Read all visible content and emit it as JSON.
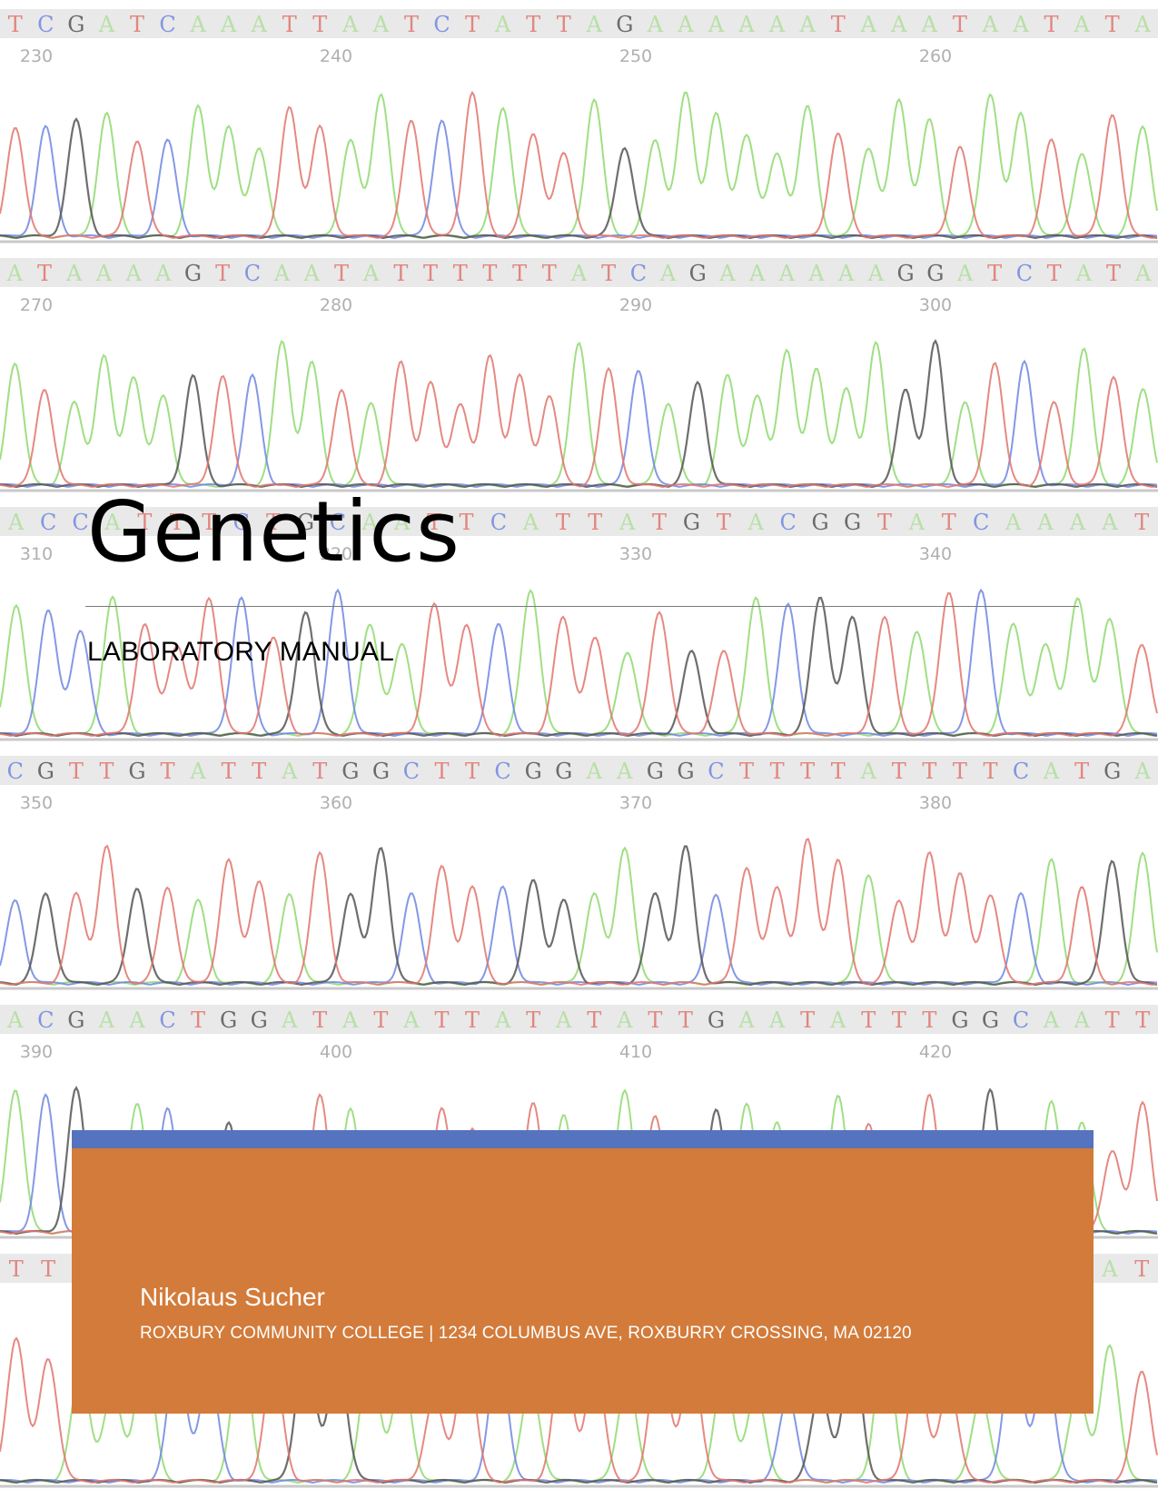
{
  "cover": {
    "title": "Genetics",
    "subtitle": "LABORATORY MANUAL",
    "author": "Nikolaus Sucher",
    "address": "ROXBURY COMMUNITY COLLEGE | 1234 COLUMBUS AVE, ROXBURRY CROSSING, MA 02120"
  },
  "colors": {
    "accent_bar": "#5573bf",
    "footer_box": "#d37b3a",
    "trace_A": "#8ed96f",
    "trace_C": "#6f86e0",
    "trace_G": "#555555",
    "trace_T": "#e0746c"
  },
  "chromatogram": {
    "rows": [
      {
        "sequence": "TCGATCAAATTAATCTATTAGAAAAAATAAATAATATA",
        "ticks": [
          "230",
          "240",
          "250",
          "260"
        ]
      },
      {
        "sequence": "ATAAAAGTCAATATTTTTTATCAGAAAAAAGGATCTATA",
        "ticks": [
          "270",
          "280",
          "290",
          "300"
        ]
      },
      {
        "sequence": "ACCATTTCTGCAATTCATTATGTACGGTATCAAAAT",
        "ticks": [
          "310",
          "320",
          "330",
          "340"
        ]
      },
      {
        "sequence": "CGTTGTATTATGGCTTCGGAAGGCTTTTATTTTCATGA",
        "ticks": [
          "350",
          "360",
          "370",
          "380"
        ]
      },
      {
        "sequence": "ACGAACTGGATATATTATATATTGAATATTTGGCAATT",
        "ticks": [
          "390",
          "400",
          "410",
          "420"
        ]
      },
      {
        "sequence": "TTAAACCATGGAATTCATTATTAACGGATTACCAAT",
        "ticks": []
      }
    ]
  }
}
